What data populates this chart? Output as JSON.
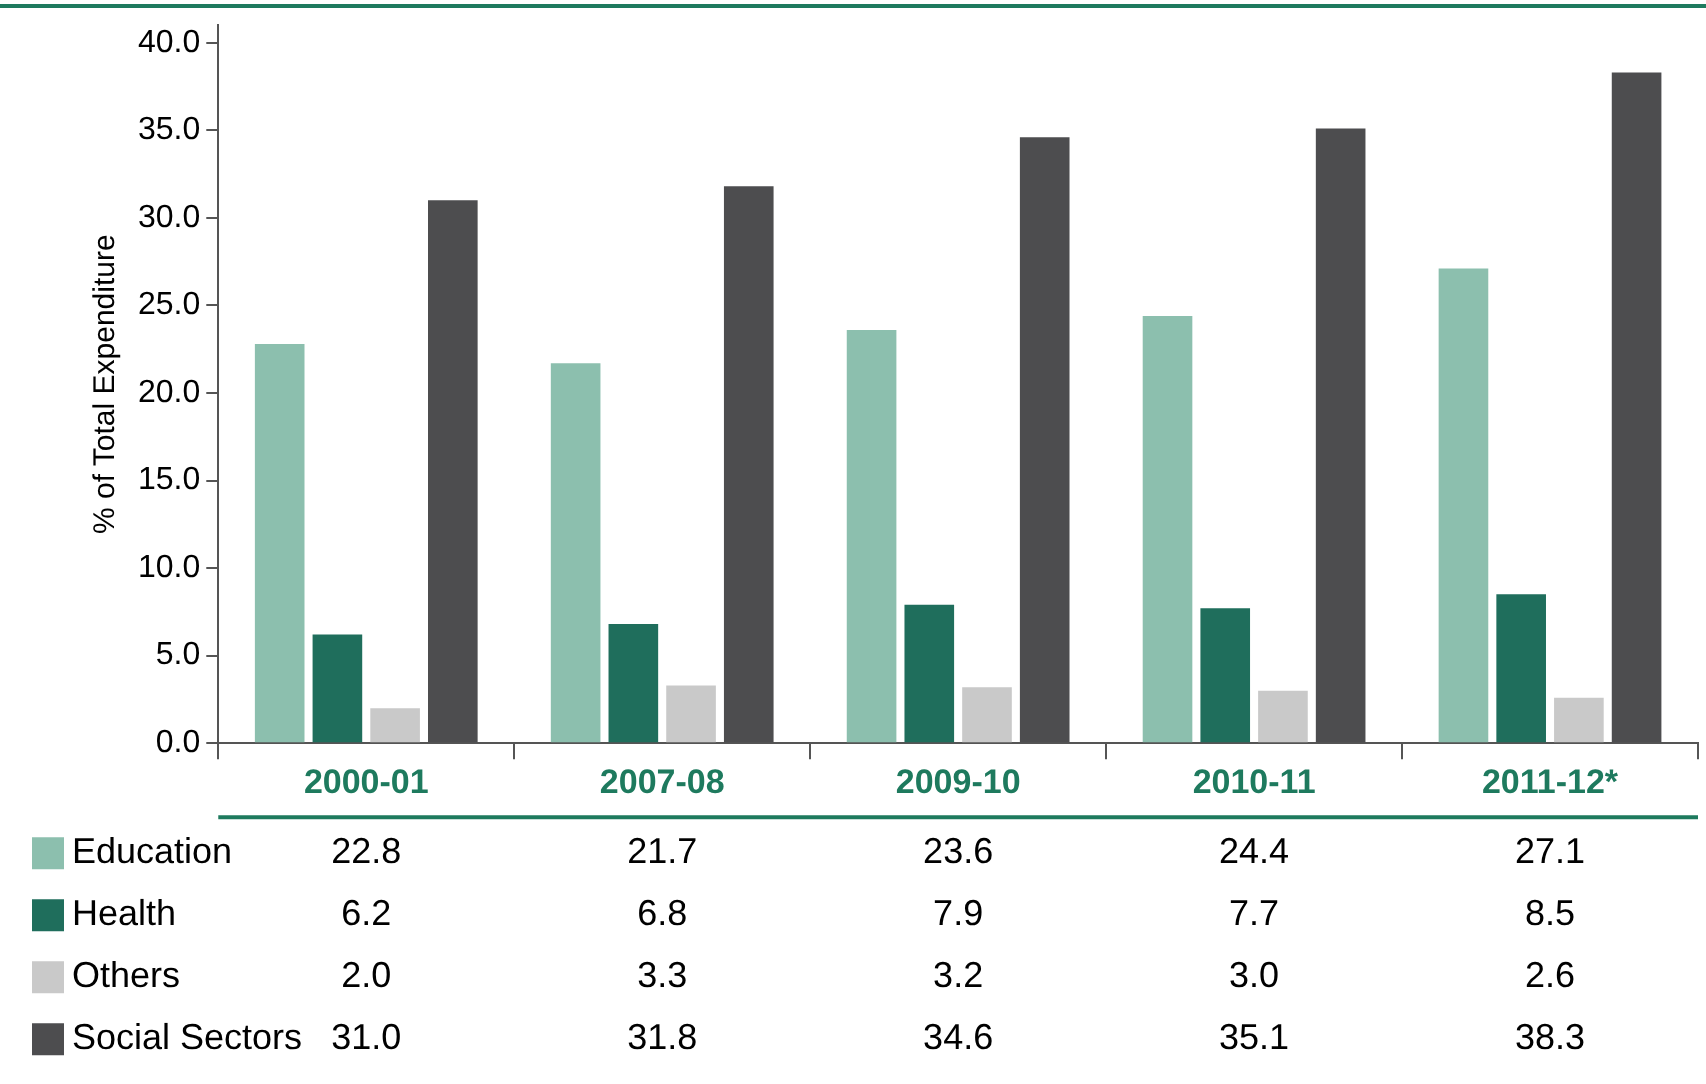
{
  "chart_data": {
    "type": "bar",
    "ylabel": "% of Total Expenditure",
    "categories": [
      "2000-01",
      "2007-08",
      "2009-10",
      "2010-11",
      "2011-12*"
    ],
    "series": [
      {
        "name": "Education",
        "color": "#8cbfae",
        "values": [
          22.8,
          21.7,
          23.6,
          24.4,
          27.1
        ],
        "value_labels": [
          "22.8",
          "21.7",
          "23.6",
          "24.4",
          "27.1"
        ]
      },
      {
        "name": "Health",
        "color": "#1f6e5c",
        "values": [
          6.2,
          6.8,
          7.9,
          7.7,
          8.5
        ],
        "value_labels": [
          "6.2",
          "6.8",
          "7.9",
          "7.7",
          "8.5"
        ]
      },
      {
        "name": "Others",
        "color": "#c9c9c9",
        "values": [
          2.0,
          3.3,
          3.2,
          3.0,
          2.6
        ],
        "value_labels": [
          "2.0",
          "3.3",
          "3.2",
          "3.0",
          "2.6"
        ]
      },
      {
        "name": "Social Sectors",
        "color": "#4d4d4f",
        "values": [
          31.0,
          31.8,
          34.6,
          35.1,
          38.3
        ],
        "value_labels": [
          "31.0",
          "31.8",
          "34.6",
          "35.1",
          "38.3"
        ]
      }
    ],
    "ylim": [
      0,
      41
    ],
    "yticks": [
      {
        "value": 0,
        "label": "0.0"
      },
      {
        "value": 5,
        "label": "5.0"
      },
      {
        "value": 10,
        "label": "10.0"
      },
      {
        "value": 15,
        "label": "15.0"
      },
      {
        "value": 20,
        "label": "20.0"
      },
      {
        "value": 25,
        "label": "25.0"
      },
      {
        "value": 30,
        "label": "30.0"
      },
      {
        "value": 35,
        "label": "35.0"
      },
      {
        "value": 40,
        "label": "40.0"
      }
    ],
    "grid": false,
    "legend": "bottom"
  }
}
